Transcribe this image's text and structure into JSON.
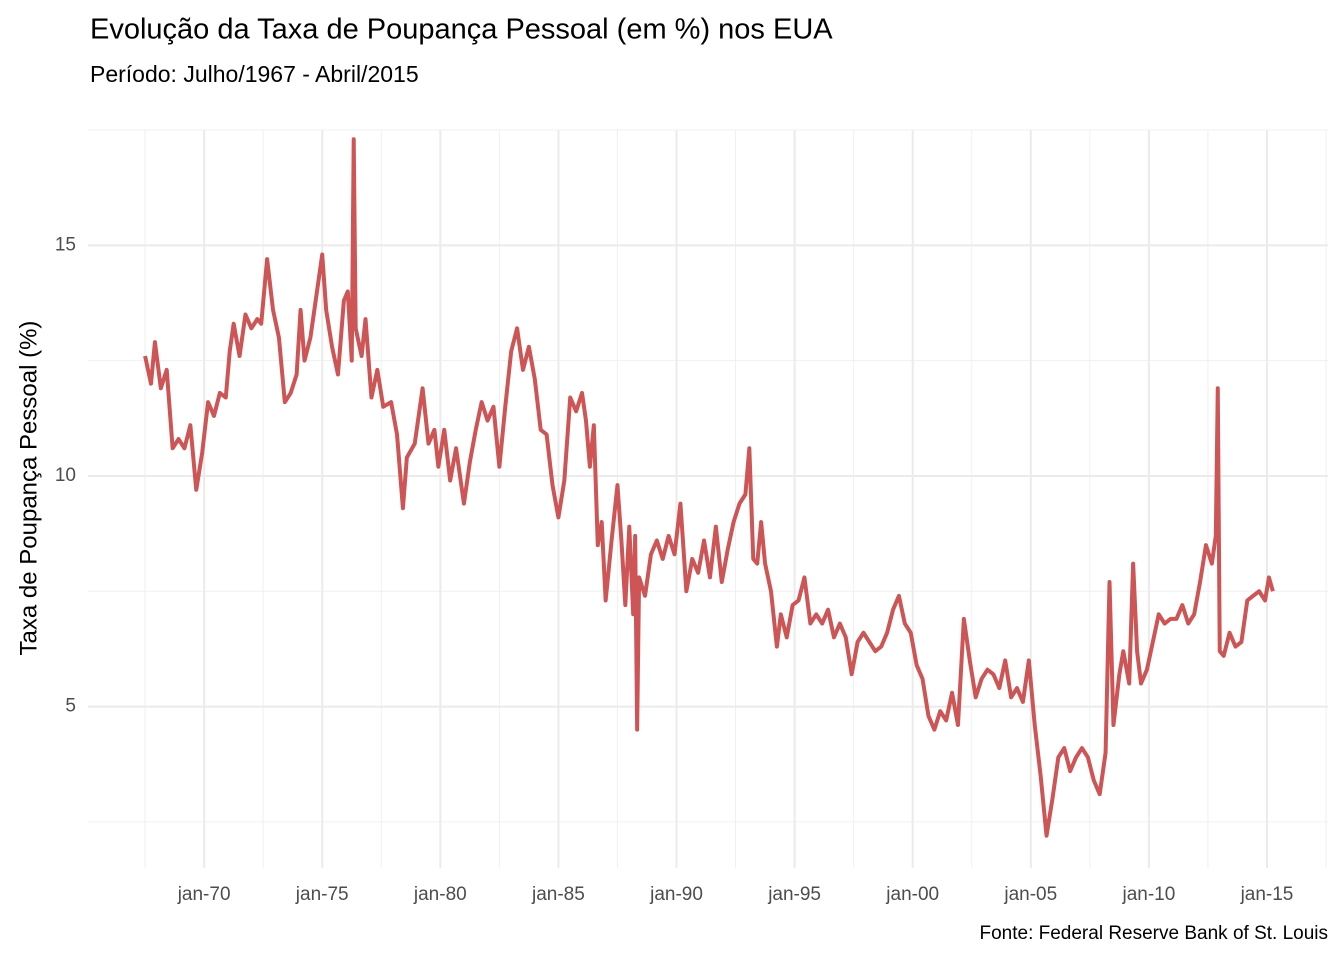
{
  "chart_data": {
    "type": "line",
    "title": "Evolução da Taxa de Poupança Pessoal (em %) nos EUA",
    "subtitle": "Período: Julho/1967 - Abril/2015",
    "y_label": "Taxa de Poupança Pessoal (%)",
    "caption": "Fonte: Federal Reserve Bank of St. Louis",
    "grid": true,
    "x": [
      "1967-07",
      "1967-10",
      "1967-12",
      "1968-03",
      "1968-06",
      "1968-09",
      "1968-12",
      "1969-03",
      "1969-06",
      "1969-09",
      "1969-12",
      "1970-03",
      "1970-06",
      "1970-09",
      "1970-12",
      "1971-02",
      "1971-04",
      "1971-07",
      "1971-10",
      "1972-01",
      "1972-04",
      "1972-06",
      "1972-09",
      "1972-12",
      "1973-03",
      "1973-06",
      "1973-09",
      "1973-12",
      "1974-02",
      "1974-04",
      "1974-07",
      "1974-10",
      "1975-01",
      "1975-03",
      "1975-06",
      "1975-09",
      "1975-12",
      "1976-02",
      "1976-04",
      "1976-05",
      "1976-06",
      "1976-09",
      "1976-11",
      "1977-02",
      "1977-05",
      "1977-08",
      "1977-12",
      "1978-03",
      "1978-06",
      "1978-08",
      "1978-12",
      "1979-04",
      "1979-07",
      "1979-10",
      "1979-12",
      "1980-03",
      "1980-06",
      "1980-09",
      "1981-01",
      "1981-04",
      "1981-07",
      "1981-10",
      "1982-01",
      "1982-04",
      "1982-07",
      "1982-10",
      "1983-01",
      "1983-04",
      "1983-07",
      "1983-10",
      "1984-01",
      "1984-04",
      "1984-07",
      "1984-10",
      "1985-01",
      "1985-04",
      "1985-07",
      "1985-10",
      "1986-01",
      "1986-03",
      "1986-05",
      "1986-07",
      "1986-09",
      "1986-11",
      "1987-01",
      "1987-04",
      "1987-07",
      "1987-09",
      "1987-11",
      "1988-01",
      "1988-03",
      "1988-04",
      "1988-05",
      "1988-06",
      "1988-09",
      "1988-12",
      "1989-03",
      "1989-06",
      "1989-09",
      "1989-12",
      "1990-03",
      "1990-06",
      "1990-09",
      "1990-12",
      "1991-03",
      "1991-06",
      "1991-09",
      "1991-12",
      "1992-03",
      "1992-06",
      "1992-09",
      "1992-12",
      "1993-02",
      "1993-04",
      "1993-06",
      "1993-08",
      "1993-10",
      "1994-01",
      "1994-04",
      "1994-06",
      "1994-09",
      "1994-12",
      "1995-03",
      "1995-06",
      "1995-09",
      "1995-12",
      "1996-03",
      "1996-06",
      "1996-09",
      "1996-12",
      "1997-03",
      "1997-06",
      "1997-09",
      "1997-12",
      "1998-03",
      "1998-06",
      "1998-09",
      "1998-12",
      "1999-03",
      "1999-06",
      "1999-09",
      "1999-12",
      "2000-03",
      "2000-06",
      "2000-09",
      "2000-12",
      "2001-03",
      "2001-06",
      "2001-09",
      "2001-12",
      "2002-03",
      "2002-06",
      "2002-09",
      "2002-12",
      "2003-03",
      "2003-06",
      "2003-09",
      "2003-12",
      "2004-03",
      "2004-06",
      "2004-09",
      "2004-12",
      "2005-03",
      "2005-06",
      "2005-09",
      "2005-12",
      "2006-03",
      "2006-06",
      "2006-09",
      "2006-12",
      "2007-03",
      "2007-06",
      "2007-09",
      "2007-12",
      "2008-03",
      "2008-05",
      "2008-07",
      "2008-10",
      "2008-12",
      "2009-03",
      "2009-05",
      "2009-07",
      "2009-09",
      "2009-12",
      "2010-03",
      "2010-06",
      "2010-09",
      "2010-12",
      "2011-03",
      "2011-06",
      "2011-09",
      "2011-12",
      "2012-03",
      "2012-06",
      "2012-09",
      "2012-11",
      "2012-12",
      "2013-01",
      "2013-03",
      "2013-06",
      "2013-09",
      "2013-12",
      "2014-03",
      "2014-06",
      "2014-09",
      "2014-12",
      "2015-02",
      "2015-04"
    ],
    "series": [
      {
        "name": "Taxa de Poupança Pessoal",
        "color": "#cd5555",
        "values": [
          12.6,
          12.0,
          12.9,
          11.9,
          12.3,
          10.6,
          10.8,
          10.6,
          11.1,
          9.7,
          10.5,
          11.6,
          11.3,
          11.8,
          11.7,
          12.7,
          13.3,
          12.6,
          13.5,
          13.2,
          13.4,
          13.3,
          14.7,
          13.6,
          13.0,
          11.6,
          11.8,
          12.2,
          13.6,
          12.5,
          13.0,
          13.9,
          14.8,
          13.6,
          12.8,
          12.2,
          13.8,
          14.0,
          12.5,
          17.3,
          13.2,
          12.6,
          13.4,
          11.7,
          12.3,
          11.5,
          11.6,
          10.9,
          9.3,
          10.4,
          10.7,
          11.9,
          10.7,
          11.0,
          10.2,
          11.0,
          9.9,
          10.6,
          9.4,
          10.3,
          11.0,
          11.6,
          11.2,
          11.5,
          10.2,
          11.5,
          12.7,
          13.2,
          12.3,
          12.8,
          12.1,
          11.0,
          10.9,
          9.8,
          9.1,
          9.9,
          11.7,
          11.4,
          11.8,
          11.2,
          10.2,
          11.1,
          8.5,
          9.0,
          7.3,
          8.6,
          9.8,
          8.6,
          7.2,
          8.9,
          7.0,
          8.7,
          4.5,
          7.8,
          7.4,
          8.3,
          8.6,
          8.2,
          8.7,
          8.3,
          9.4,
          7.5,
          8.2,
          7.9,
          8.6,
          7.8,
          8.9,
          7.7,
          8.4,
          9.0,
          9.4,
          9.6,
          10.6,
          8.2,
          8.1,
          9.0,
          8.1,
          7.5,
          6.3,
          7.0,
          6.5,
          7.2,
          7.3,
          7.8,
          6.8,
          7.0,
          6.8,
          7.1,
          6.5,
          6.8,
          6.5,
          5.7,
          6.4,
          6.6,
          6.4,
          6.2,
          6.3,
          6.6,
          7.1,
          7.4,
          6.8,
          6.6,
          5.9,
          5.6,
          4.8,
          4.5,
          4.9,
          4.7,
          5.3,
          4.6,
          6.9,
          6.0,
          5.2,
          5.6,
          5.8,
          5.7,
          5.4,
          6.0,
          5.2,
          5.4,
          5.1,
          6.0,
          4.6,
          3.5,
          2.2,
          3.0,
          3.9,
          4.1,
          3.6,
          3.9,
          4.1,
          3.9,
          3.4,
          3.1,
          4.0,
          7.7,
          4.6,
          5.7,
          6.2,
          5.5,
          8.1,
          6.2,
          5.5,
          5.8,
          6.4,
          7.0,
          6.8,
          6.9,
          6.9,
          7.2,
          6.8,
          7.0,
          7.7,
          8.5,
          8.1,
          8.7,
          11.9,
          6.2,
          6.1,
          6.6,
          6.3,
          6.4,
          7.3,
          7.4,
          7.5,
          7.3,
          7.8,
          7.5
        ]
      }
    ],
    "xlim": [
      "1965-02",
      "2017-08"
    ],
    "xticks": [
      {
        "value": "1970-01",
        "label": "jan-70"
      },
      {
        "value": "1975-01",
        "label": "jan-75"
      },
      {
        "value": "1980-01",
        "label": "jan-80"
      },
      {
        "value": "1985-01",
        "label": "jan-85"
      },
      {
        "value": "1990-01",
        "label": "jan-90"
      },
      {
        "value": "1995-01",
        "label": "jan-95"
      },
      {
        "value": "2000-01",
        "label": "jan-00"
      },
      {
        "value": "2005-01",
        "label": "jan-05"
      },
      {
        "value": "2010-01",
        "label": "jan-10"
      },
      {
        "value": "2015-01",
        "label": "jan-15"
      }
    ],
    "ylim": [
      1.5,
      17.5
    ],
    "yticks": [
      5,
      10,
      15
    ]
  }
}
